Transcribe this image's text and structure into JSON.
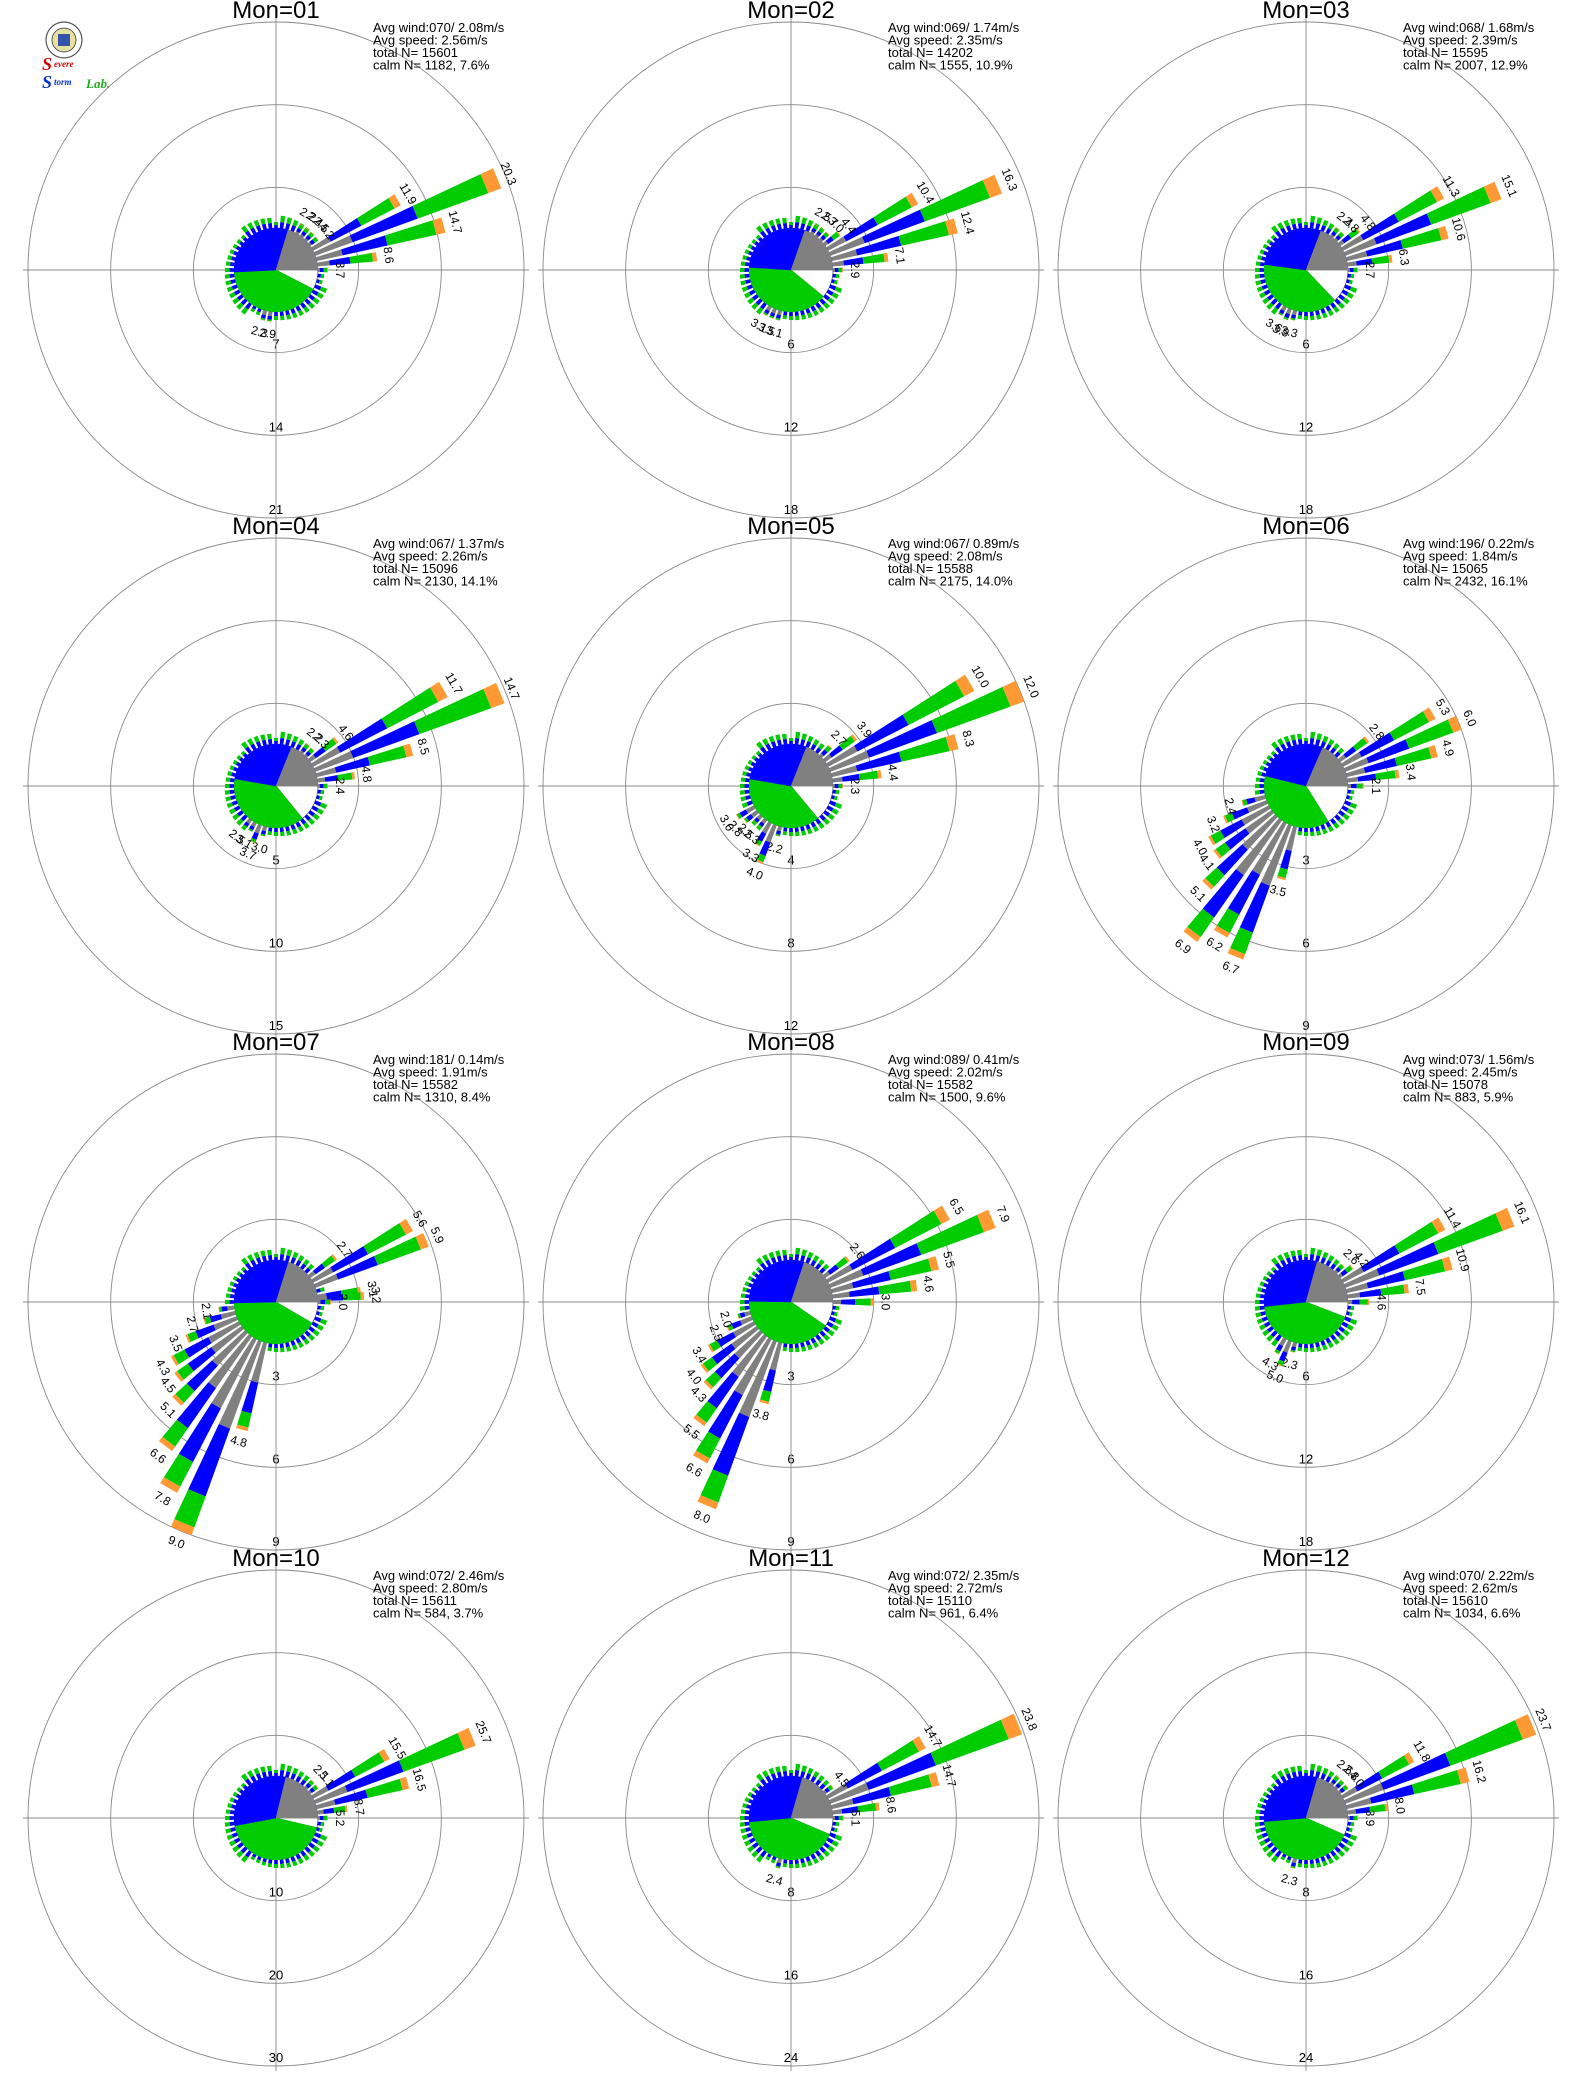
{
  "logo": {
    "line1_big": "S",
    "line1_small": "evere",
    "line2_big": "S",
    "line2_small": "torm",
    "line2_tail": "Lab."
  },
  "colors": {
    "calm": "#ffffff",
    "speed_bins": [
      "#808080",
      "#0000ff",
      "#00cc00",
      "#ff9933"
    ]
  },
  "chart_data": [
    {
      "type": "windrose",
      "title": "Mon=01",
      "stats": {
        "avg_wind": "Avg wind:070/ 2.08m/s",
        "avg_speed": "Avg speed: 2.56m/s",
        "total": "total N=       15601",
        "calm": "calm N=   1182,   7.6%"
      },
      "ring_max": 21,
      "rings": [
        "7",
        "14",
        "21"
      ],
      "calm_pct": 7.6,
      "bars": [
        {
          "dir": 67.5,
          "value": 20.3,
          "label": "20.3"
        },
        {
          "dir": 60,
          "value": 11.9,
          "label": "11.9"
        },
        {
          "dir": 75,
          "value": 14.7,
          "label": "14.7"
        },
        {
          "dir": 82.5,
          "value": 8.6,
          "label": "8.6"
        },
        {
          "dir": 90,
          "value": 3.7,
          "label": "3.7"
        },
        {
          "dir": 52.5,
          "value": 4.2,
          "label": "4.2"
        },
        {
          "dir": 45,
          "value": 2.5,
          "label": "2.5"
        },
        {
          "dir": 37.5,
          "value": 2.4,
          "label": "2.4"
        },
        {
          "dir": 30,
          "value": 2.2,
          "label": "2.2"
        },
        {
          "dir": 187.5,
          "value": 2.9,
          "label": "2.9"
        },
        {
          "dir": 195,
          "value": 2.3,
          "label": "2.3"
        }
      ]
    },
    {
      "type": "windrose",
      "title": "Mon=02",
      "stats": {
        "avg_wind": "Avg wind:069/ 1.74m/s",
        "avg_speed": "Avg speed: 2.35m/s",
        "total": "total N=       14202",
        "calm": "calm N=   1555,  10.9%"
      },
      "ring_max": 18,
      "rings": [
        "6",
        "12",
        "18"
      ],
      "calm_pct": 10.9,
      "bars": [
        {
          "dir": 67.5,
          "value": 16.3,
          "label": "16.3"
        },
        {
          "dir": 60,
          "value": 10.4,
          "label": "10.4"
        },
        {
          "dir": 75,
          "value": 12.4,
          "label": "12.4"
        },
        {
          "dir": 82.5,
          "value": 7.1,
          "label": "7.1"
        },
        {
          "dir": 90,
          "value": 2.9,
          "label": "2.9"
        },
        {
          "dir": 52.5,
          "value": 4.4,
          "label": "4.4"
        },
        {
          "dir": 45,
          "value": 3.0,
          "label": "3.0"
        },
        {
          "dir": 37.5,
          "value": 2.7,
          "label": "2.7"
        },
        {
          "dir": 30,
          "value": 2.5,
          "label": "2.5"
        },
        {
          "dir": 195,
          "value": 3.1,
          "label": "3.1"
        },
        {
          "dir": 202.5,
          "value": 3.5,
          "label": "3.5"
        },
        {
          "dir": 210,
          "value": 3.1,
          "label": "3.1"
        }
      ]
    },
    {
      "type": "windrose",
      "title": "Mon=03",
      "stats": {
        "avg_wind": "Avg wind:068/ 1.68m/s",
        "avg_speed": "Avg speed: 2.39m/s",
        "total": "total N=       15595",
        "calm": "calm N=   2007,  12.9%"
      },
      "ring_max": 18,
      "rings": [
        "6",
        "12",
        "18"
      ],
      "calm_pct": 12.9,
      "bars": [
        {
          "dir": 67.5,
          "value": 15.1,
          "label": "15.1"
        },
        {
          "dir": 60,
          "value": 11.3,
          "label": "11.3"
        },
        {
          "dir": 75,
          "value": 10.6,
          "label": "10.6"
        },
        {
          "dir": 82.5,
          "value": 6.3,
          "label": "6.3"
        },
        {
          "dir": 90,
          "value": 2.7,
          "label": "2.7"
        },
        {
          "dir": 52.5,
          "value": 4.8,
          "label": "4.8"
        },
        {
          "dir": 45,
          "value": 2.8,
          "label": "2.8"
        },
        {
          "dir": 37.5,
          "value": 2.4,
          "label": "2.4"
        },
        {
          "dir": 195,
          "value": 3.3,
          "label": "3.3"
        },
        {
          "dir": 202.5,
          "value": 3.9,
          "label": "3.9"
        },
        {
          "dir": 210,
          "value": 3.6,
          "label": "3.6"
        }
      ]
    },
    {
      "type": "windrose",
      "title": "Mon=04",
      "stats": {
        "avg_wind": "Avg wind:067/ 1.37m/s",
        "avg_speed": "Avg speed: 2.26m/s",
        "total": "total N=       15096",
        "calm": "calm N=   2130,  14.1%"
      },
      "ring_max": 15,
      "rings": [
        "5",
        "10",
        "15"
      ],
      "calm_pct": 14.1,
      "bars": [
        {
          "dir": 67.5,
          "value": 14.7,
          "label": "14.7"
        },
        {
          "dir": 60,
          "value": 11.7,
          "label": "11.7"
        },
        {
          "dir": 75,
          "value": 8.5,
          "label": "8.5"
        },
        {
          "dir": 82.5,
          "value": 4.8,
          "label": "4.8"
        },
        {
          "dir": 90,
          "value": 2.4,
          "label": "2.4"
        },
        {
          "dir": 52.5,
          "value": 4.6,
          "label": "4.6"
        },
        {
          "dir": 45,
          "value": 2.3,
          "label": "2.3"
        },
        {
          "dir": 37.5,
          "value": 2.2,
          "label": "2.2"
        },
        {
          "dir": 195,
          "value": 3.0,
          "label": "3.0"
        },
        {
          "dir": 202.5,
          "value": 3.7,
          "label": "3.7"
        },
        {
          "dir": 210,
          "value": 3.1,
          "label": "3.1"
        },
        {
          "dir": 217.5,
          "value": 2.5,
          "label": "2.5"
        }
      ]
    },
    {
      "type": "windrose",
      "title": "Mon=05",
      "stats": {
        "avg_wind": "Avg wind:067/ 0.89m/s",
        "avg_speed": "Avg speed: 2.08m/s",
        "total": "total N=       15588",
        "calm": "calm N=   2175,  14.0%"
      },
      "ring_max": 12,
      "rings": [
        "4",
        "8",
        "12"
      ],
      "calm_pct": 14.0,
      "bars": [
        {
          "dir": 67.5,
          "value": 12.0,
          "label": "12.0"
        },
        {
          "dir": 60,
          "value": 10.0,
          "label": "10.0"
        },
        {
          "dir": 75,
          "value": 8.3,
          "label": "8.3"
        },
        {
          "dir": 82.5,
          "value": 4.4,
          "label": "4.4"
        },
        {
          "dir": 90,
          "value": 2.3,
          "label": "2.3"
        },
        {
          "dir": 52.5,
          "value": 3.9,
          "label": "3.9"
        },
        {
          "dir": 45,
          "value": 2.7,
          "label": "2.7"
        },
        {
          "dir": 195,
          "value": 2.2,
          "label": "2.2"
        },
        {
          "dir": 202.5,
          "value": 4.0,
          "label": "4.0"
        },
        {
          "dir": 210,
          "value": 3.3,
          "label": "3.3"
        },
        {
          "dir": 217.5,
          "value": 2.3,
          "label": "2.3"
        },
        {
          "dir": 225,
          "value": 2.5,
          "label": "2.5"
        },
        {
          "dir": 232.5,
          "value": 2.8,
          "label": "2.8"
        },
        {
          "dir": 240,
          "value": 3.0,
          "label": "3.0"
        }
      ]
    },
    {
      "type": "windrose",
      "title": "Mon=06",
      "stats": {
        "avg_wind": "Avg wind:196/ 0.22m/s",
        "avg_speed": "Avg speed: 1.84m/s",
        "total": "total N=       15065",
        "calm": "calm N=   2432,  16.1%"
      },
      "ring_max": 9,
      "rings": [
        "3",
        "6",
        "9"
      ],
      "calm_pct": 16.1,
      "bars": [
        {
          "dir": 67.5,
          "value": 6.0,
          "label": "6.0"
        },
        {
          "dir": 60,
          "value": 5.3,
          "label": "5.3"
        },
        {
          "dir": 75,
          "value": 4.9,
          "label": "4.9"
        },
        {
          "dir": 82.5,
          "value": 3.4,
          "label": "3.4"
        },
        {
          "dir": 90,
          "value": 2.1,
          "label": "2.1"
        },
        {
          "dir": 52.5,
          "value": 2.8,
          "label": "2.8"
        },
        {
          "dir": 195,
          "value": 3.5,
          "label": "3.5"
        },
        {
          "dir": 202.5,
          "value": 6.7,
          "label": "6.7"
        },
        {
          "dir": 210,
          "value": 6.2,
          "label": "6.2"
        },
        {
          "dir": 217.5,
          "value": 6.9,
          "label": "6.9"
        },
        {
          "dir": 225,
          "value": 5.1,
          "label": "5.1"
        },
        {
          "dir": 232.5,
          "value": 4.1,
          "label": "4.1"
        },
        {
          "dir": 240,
          "value": 4.0,
          "label": "4.0"
        },
        {
          "dir": 247.5,
          "value": 3.2,
          "label": "3.2"
        },
        {
          "dir": 255,
          "value": 2.4,
          "label": "2.4"
        }
      ]
    },
    {
      "type": "windrose",
      "title": "Mon=07",
      "stats": {
        "avg_wind": "Avg wind:181/ 0.14m/s",
        "avg_speed": "Avg speed: 1.91m/s",
        "total": "total N=       15582",
        "calm": "calm N=   1310,   8.4%"
      },
      "ring_max": 9,
      "rings": [
        "3",
        "6",
        "9"
      ],
      "calm_pct": 8.4,
      "bars": [
        {
          "dir": 67.5,
          "value": 5.9,
          "label": "5.9"
        },
        {
          "dir": 60,
          "value": 5.6,
          "label": "5.6"
        },
        {
          "dir": 52.5,
          "value": 2.7,
          "label": "2.7"
        },
        {
          "dir": 82.5,
          "value": 3.1,
          "label": "3.1"
        },
        {
          "dir": 86,
          "value": 3.2,
          "label": "3.2"
        },
        {
          "dir": 90,
          "value": 2.0,
          "label": "2.0"
        },
        {
          "dir": 195,
          "value": 4.8,
          "label": "4.8"
        },
        {
          "dir": 202.5,
          "value": 9.0,
          "label": "9.0"
        },
        {
          "dir": 210,
          "value": 7.8,
          "label": "7.8"
        },
        {
          "dir": 217.5,
          "value": 6.6,
          "label": "6.6"
        },
        {
          "dir": 225,
          "value": 5.1,
          "label": "5.1"
        },
        {
          "dir": 232.5,
          "value": 4.5,
          "label": "4.5"
        },
        {
          "dir": 240,
          "value": 4.3,
          "label": "4.3"
        },
        {
          "dir": 247.5,
          "value": 3.5,
          "label": "3.5"
        },
        {
          "dir": 255,
          "value": 2.7,
          "label": "2.7"
        },
        {
          "dir": 262.5,
          "value": 2.1,
          "label": "2.1"
        }
      ]
    },
    {
      "type": "windrose",
      "title": "Mon=08",
      "stats": {
        "avg_wind": "Avg wind:089/ 0.41m/s",
        "avg_speed": "Avg speed: 2.02m/s",
        "total": "total N=       15582",
        "calm": "calm N=   1500,   9.6%"
      },
      "ring_max": 9,
      "rings": [
        "3",
        "6",
        "9"
      ],
      "calm_pct": 9.6,
      "bars": [
        {
          "dir": 67.5,
          "value": 7.9,
          "label": "7.9"
        },
        {
          "dir": 60,
          "value": 6.5,
          "label": "6.5"
        },
        {
          "dir": 75,
          "value": 5.5,
          "label": "5.5"
        },
        {
          "dir": 82.5,
          "value": 4.6,
          "label": "4.6"
        },
        {
          "dir": 90,
          "value": 3.0,
          "label": "3.0"
        },
        {
          "dir": 52.5,
          "value": 2.6,
          "label": "2.6"
        },
        {
          "dir": 195,
          "value": 3.8,
          "label": "3.8"
        },
        {
          "dir": 202.5,
          "value": 8.0,
          "label": "8.0"
        },
        {
          "dir": 210,
          "value": 6.6,
          "label": "6.6"
        },
        {
          "dir": 217.5,
          "value": 5.5,
          "label": "5.5"
        },
        {
          "dir": 225,
          "value": 4.3,
          "label": "4.3"
        },
        {
          "dir": 232.5,
          "value": 4.0,
          "label": "4.0"
        },
        {
          "dir": 240,
          "value": 3.4,
          "label": "3.4"
        },
        {
          "dir": 247.5,
          "value": 2.5,
          "label": "2.5"
        },
        {
          "dir": 255,
          "value": 2.0,
          "label": "2.0"
        }
      ]
    },
    {
      "type": "windrose",
      "title": "Mon=09",
      "stats": {
        "avg_wind": "Avg wind:073/ 1.56m/s",
        "avg_speed": "Avg speed: 2.45m/s",
        "total": "total N=       15078",
        "calm": "calm N=    883,   5.9%"
      },
      "ring_max": 18,
      "rings": [
        "6",
        "12",
        "18"
      ],
      "calm_pct": 5.9,
      "bars": [
        {
          "dir": 67.5,
          "value": 16.1,
          "label": "16.1"
        },
        {
          "dir": 60,
          "value": 11.4,
          "label": "11.4"
        },
        {
          "dir": 75,
          "value": 10.9,
          "label": "10.9"
        },
        {
          "dir": 82.5,
          "value": 7.5,
          "label": "7.5"
        },
        {
          "dir": 90,
          "value": 4.6,
          "label": "4.6"
        },
        {
          "dir": 52.5,
          "value": 4.2,
          "label": "4.2"
        },
        {
          "dir": 45,
          "value": 2.6,
          "label": "2.6"
        },
        {
          "dir": 195,
          "value": 2.3,
          "label": "2.3"
        },
        {
          "dir": 202.5,
          "value": 5.0,
          "label": "5.0"
        },
        {
          "dir": 210,
          "value": 4.3,
          "label": "4.3"
        }
      ]
    },
    {
      "type": "windrose",
      "title": "Mon=10",
      "stats": {
        "avg_wind": "Avg wind:072/ 2.46m/s",
        "avg_speed": "Avg speed: 2.80m/s",
        "total": "total N=       15611",
        "calm": "calm N=    584,   3.7%"
      },
      "ring_max": 30,
      "rings": [
        "10",
        "20",
        "30"
      ],
      "calm_pct": 3.7,
      "bars": [
        {
          "dir": 67.5,
          "value": 25.7,
          "label": "25.7"
        },
        {
          "dir": 60,
          "value": 15.5,
          "label": "15.5"
        },
        {
          "dir": 75,
          "value": 16.5,
          "label": "16.5"
        },
        {
          "dir": 82.5,
          "value": 8.7,
          "label": "8.7"
        },
        {
          "dir": 90,
          "value": 5.2,
          "label": "5.2"
        },
        {
          "dir": 52.5,
          "value": 5.1,
          "label": "5.1"
        },
        {
          "dir": 45,
          "value": 2.1,
          "label": "2.1"
        }
      ]
    },
    {
      "type": "windrose",
      "title": "Mon=11",
      "stats": {
        "avg_wind": "Avg wind:072/ 2.35m/s",
        "avg_speed": "Avg speed: 2.72m/s",
        "total": "total N=       15110",
        "calm": "calm N=    961,   6.4%"
      },
      "ring_max": 24,
      "rings": [
        "8",
        "16",
        "24"
      ],
      "calm_pct": 6.4,
      "bars": [
        {
          "dir": 67.5,
          "value": 23.8,
          "label": "23.8"
        },
        {
          "dir": 60,
          "value": 14.7,
          "label": "14.7"
        },
        {
          "dir": 75,
          "value": 14.7,
          "label": "14.7"
        },
        {
          "dir": 82.5,
          "value": 8.6,
          "label": "8.6"
        },
        {
          "dir": 90,
          "value": 5.1,
          "label": "5.1"
        },
        {
          "dir": 52.5,
          "value": 4.5,
          "label": "4.5"
        },
        {
          "dir": 195,
          "value": 2.4,
          "label": "2.4"
        }
      ]
    },
    {
      "type": "windrose",
      "title": "Mon=12",
      "stats": {
        "avg_wind": "Avg wind:070/ 2.22m/s",
        "avg_speed": "Avg speed: 2.62m/s",
        "total": "total N=       15610",
        "calm": "calm N=   1034,   6.6%"
      },
      "ring_max": 24,
      "rings": [
        "8",
        "16",
        "24"
      ],
      "calm_pct": 6.6,
      "bars": [
        {
          "dir": 67.5,
          "value": 23.7,
          "label": "23.7"
        },
        {
          "dir": 60,
          "value": 11.8,
          "label": "11.8"
        },
        {
          "dir": 75,
          "value": 16.2,
          "label": "16.2"
        },
        {
          "dir": 82.5,
          "value": 8.0,
          "label": "8.0"
        },
        {
          "dir": 90,
          "value": 3.9,
          "label": "3.9"
        },
        {
          "dir": 52.5,
          "value": 4.0,
          "label": "4.0"
        },
        {
          "dir": 45,
          "value": 2.8,
          "label": "2.8"
        },
        {
          "dir": 37.5,
          "value": 2.6,
          "label": "2.6"
        },
        {
          "dir": 195,
          "value": 2.3,
          "label": "2.3"
        }
      ]
    }
  ]
}
